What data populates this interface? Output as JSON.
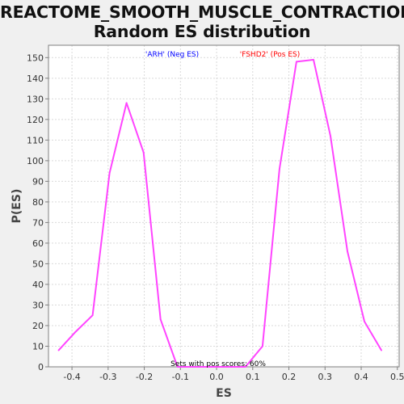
{
  "chart_data": {
    "type": "line",
    "title_lines": [
      "REACTOME_SMOOTH_MUSCLE_CONTRACTION:",
      "Random ES distribution"
    ],
    "xlabel": "ES",
    "ylabel": "P(ES)",
    "xlim": [
      -0.465,
      0.505
    ],
    "ylim": [
      0,
      156
    ],
    "x_ticks": [
      -0.4,
      -0.3,
      -0.2,
      -0.1,
      0.0,
      0.1,
      0.2,
      0.3,
      0.4,
      0.5
    ],
    "x_tick_labels": [
      "-0.4",
      "-0.3",
      "-0.2",
      "-0.1",
      "0.0",
      "0.1",
      "0.2",
      "0.3",
      "0.4",
      "0.5"
    ],
    "y_ticks": [
      0,
      10,
      20,
      30,
      40,
      50,
      60,
      70,
      80,
      90,
      100,
      110,
      120,
      130,
      140,
      150
    ],
    "y_tick_labels": [
      "0",
      "10",
      "20",
      "30",
      "40",
      "50",
      "60",
      "70",
      "80",
      "90",
      "100",
      "110",
      "120",
      "130",
      "140",
      "150"
    ],
    "grid": true,
    "line_color": "#ff44ff",
    "series": [
      {
        "x": [
          -0.437,
          -0.39,
          -0.343,
          -0.296,
          -0.249,
          -0.202,
          -0.155,
          -0.108,
          -0.061,
          -0.014,
          0.033,
          0.08,
          0.127,
          0.174,
          0.221,
          0.268,
          0.315,
          0.362,
          0.409,
          0.456
        ],
        "y": [
          8,
          17,
          25,
          94,
          128,
          104,
          23,
          0,
          0,
          0,
          0,
          0,
          10,
          96,
          148,
          149,
          112,
          56,
          22,
          8
        ]
      }
    ],
    "annotations": [
      {
        "text": "'ARH' (Neg ES)",
        "color": "#0000ff"
      },
      {
        "text": "'FSHD2' (Pos ES)",
        "color": "#ff0000"
      },
      {
        "text": "Sets with pos scores: 60%",
        "color": "#000000"
      }
    ]
  }
}
